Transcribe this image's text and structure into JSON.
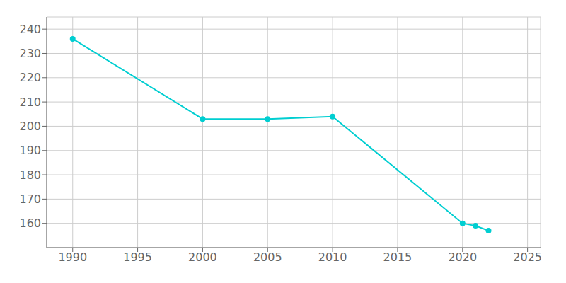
{
  "chart_data": {
    "type": "line",
    "x": [
      1990,
      2000,
      2005,
      2010,
      2020,
      2021,
      2022
    ],
    "values": [
      236,
      203,
      203,
      204,
      160,
      159,
      157
    ],
    "color": "#00CED1",
    "marker": "circle",
    "xlim": [
      1988,
      2026
    ],
    "ylim": [
      150,
      245
    ],
    "xticks": [
      1990,
      1995,
      2000,
      2005,
      2010,
      2015,
      2020,
      2025
    ],
    "yticks": [
      160,
      170,
      180,
      190,
      200,
      210,
      220,
      230,
      240
    ],
    "grid": true
  }
}
